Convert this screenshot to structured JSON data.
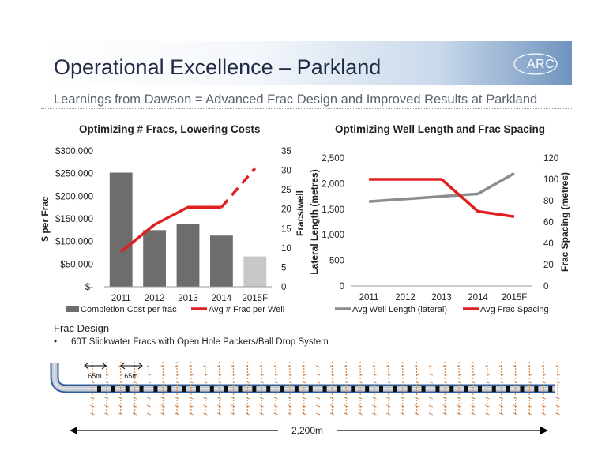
{
  "header": {
    "title": "Operational Excellence – Parkland",
    "subtitle": "Learnings from Dawson = Advanced Frac Design and Improved Results at Parkland",
    "logo_text": "ARC"
  },
  "colors": {
    "bar_gray": "#6d6d6d",
    "bar_forecast": "#c8c8c8",
    "line_red": "#e02020",
    "line_gray": "#8c8c8c"
  },
  "charts": {
    "left": {
      "title": "Optimizing # Fracs, Lowering Costs",
      "ylabel_left": "$ per Frac",
      "ylabel_right": "Fracs/well",
      "y_ticks_left": [
        "$300,000",
        "$250,000",
        "$200,000",
        "$150,000",
        "$100,000",
        "$50,000",
        "$-"
      ],
      "y_ticks_right": [
        "35",
        "30",
        "25",
        "20",
        "15",
        "10",
        "5",
        "0"
      ],
      "legend": [
        "Completion Cost per frac",
        "Avg # Frac per Well"
      ]
    },
    "right": {
      "title": "Optimizing Well Length and Frac Spacing",
      "ylabel_left": "Lateral Length (metres)",
      "ylabel_right": "Frac Spacing (metres)",
      "y_ticks_left": [
        "2,500",
        "2,000",
        "1,500",
        "1,000",
        "500",
        "0"
      ],
      "y_ticks_right": [
        "120",
        "100",
        "80",
        "60",
        "40",
        "20",
        "0"
      ],
      "legend": [
        "Avg Well Length (lateral)",
        "Avg Frac Spacing"
      ]
    }
  },
  "chart_data": [
    {
      "type": "bar",
      "title": "Optimizing # Fracs, Lowering Costs",
      "categories": [
        "2011",
        "2012",
        "2013",
        "2014",
        "2015F"
      ],
      "series": [
        {
          "name": "Completion Cost per frac",
          "type": "bar",
          "axis": "left",
          "values": [
            252000,
            125000,
            138000,
            113000,
            67000
          ],
          "forecast_index": 4
        },
        {
          "name": "Avg # Frac per Well",
          "type": "line",
          "axis": "right",
          "values": [
            9,
            16,
            20.5,
            20.5,
            30.5
          ],
          "dashed_from_index": 3
        }
      ],
      "ylabel": "$ per Frac",
      "ylim": [
        0,
        300000
      ],
      "y2label": "Fracs/well",
      "y2lim": [
        0,
        35
      ],
      "legend_position": "bottom"
    },
    {
      "type": "line",
      "title": "Optimizing Well Length and Frac Spacing",
      "categories": [
        "2011",
        "2012",
        "2013",
        "2014",
        "2015F"
      ],
      "series": [
        {
          "name": "Avg Well Length (lateral)",
          "axis": "left",
          "values": [
            1650,
            1700,
            1750,
            1800,
            2200
          ]
        },
        {
          "name": "Avg Frac Spacing",
          "axis": "right",
          "values": [
            100,
            100,
            100,
            70,
            65
          ]
        }
      ],
      "ylabel": "Lateral Length (metres)",
      "ylim": [
        0,
        2500
      ],
      "y2label": "Frac Spacing (metres)",
      "y2lim": [
        0,
        120
      ],
      "legend_position": "bottom"
    }
  ],
  "frac_design": {
    "heading": "Frac Design",
    "bullet_mark": "•",
    "bullet": "60T Slickwater Fracs with Open Hole Packers/Ball Drop System",
    "spacing_label_1": "65m",
    "spacing_label_2": "65m",
    "length_label": "2,200m",
    "frac_count": 34
  }
}
